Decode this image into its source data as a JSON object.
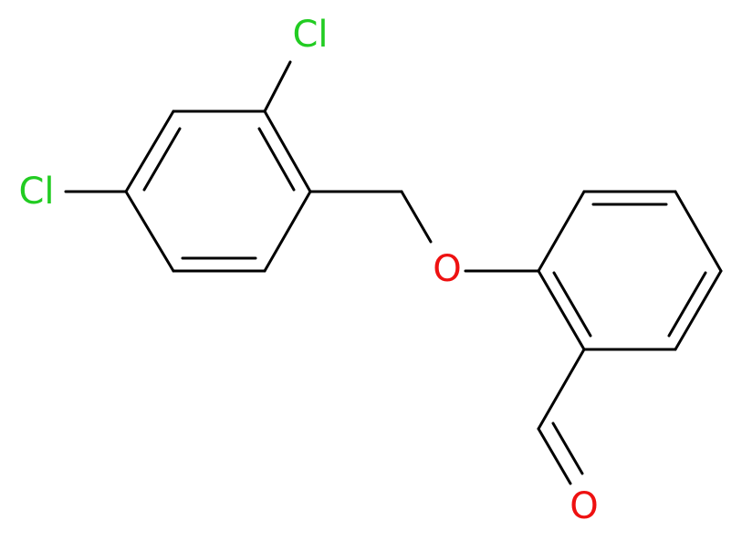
{
  "atoms": [
    {
      "label": "Cl"
    },
    {
      "label": "Cl"
    },
    {
      "label": "O"
    },
    {
      "label": "O"
    }
  ]
}
